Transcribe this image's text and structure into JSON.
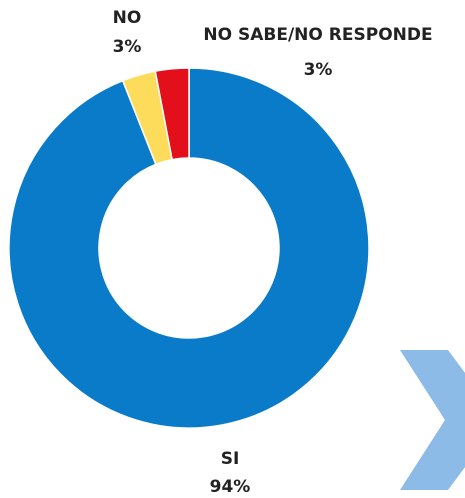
{
  "chart_data": {
    "type": "donut",
    "categories": [
      "SI",
      "NO",
      "NO SABE/NO RESPONDE"
    ],
    "values": [
      94,
      3,
      3
    ],
    "value_labels": [
      "94%",
      "3%",
      "3%"
    ],
    "colors": [
      "#0a7bc9",
      "#fddc5c",
      "#e3101c"
    ]
  }
}
